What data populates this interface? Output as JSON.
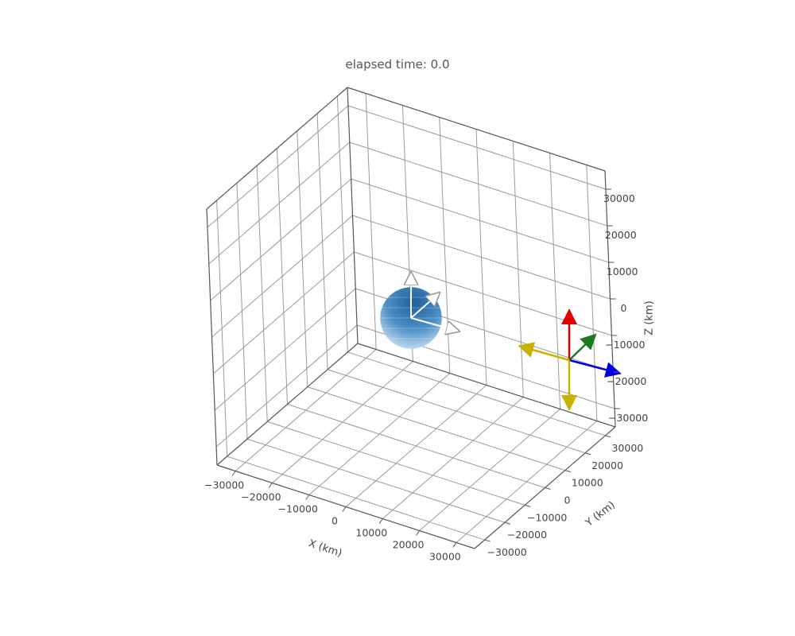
{
  "chart_data": {
    "type": "scatter",
    "projection": "3d",
    "title": "elapsed time: 0.0",
    "xlabel": "X (km)",
    "ylabel": "Y (km)",
    "zlabel": "Z (km)",
    "xlim": [
      -35000,
      35000
    ],
    "ylim": [
      -35000,
      35000
    ],
    "zlim": [
      -35000,
      35000
    ],
    "x_ticks": [
      -30000,
      -20000,
      -10000,
      0,
      10000,
      20000,
      30000
    ],
    "y_ticks": [
      -30000,
      -20000,
      -10000,
      0,
      10000,
      20000,
      30000
    ],
    "z_ticks": [
      -30000,
      -20000,
      -10000,
      0,
      10000,
      20000,
      30000
    ],
    "x_tick_labels": [
      "−30000",
      "−20000",
      "−10000",
      "0",
      "10000",
      "20000",
      "30000"
    ],
    "y_tick_labels": [
      "−30000",
      "−20000",
      "−10000",
      "0",
      "10000",
      "20000",
      "30000"
    ],
    "z_tick_labels": [
      "−30000",
      "−20000",
      "−10000",
      "0",
      "10000",
      "20000",
      "30000"
    ],
    "grid": true,
    "body": {
      "center": [
        0,
        0,
        0
      ],
      "radius": 6371,
      "color": "#2b6ea8"
    },
    "frame_arrows": [
      {
        "color": "#e00000"
      },
      {
        "color": "#1f7a1f"
      },
      {
        "color": "#0000e0"
      },
      {
        "color": "#c8b400"
      }
    ]
  }
}
